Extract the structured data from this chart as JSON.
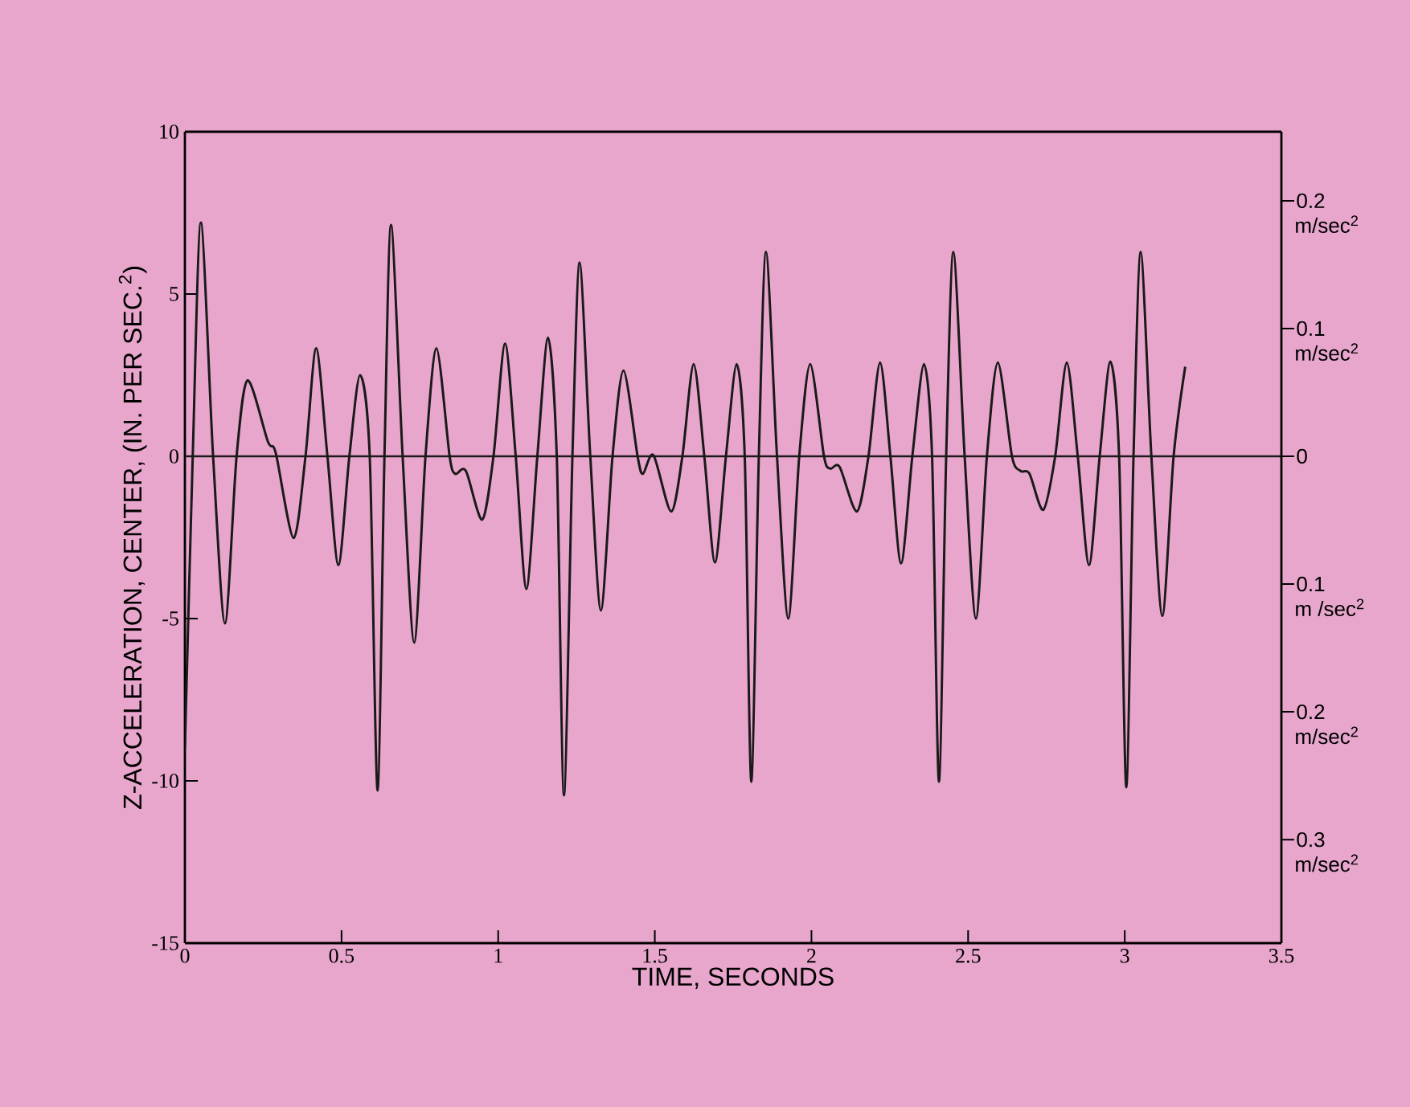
{
  "chart_data": {
    "type": "line",
    "xlabel": "TIME, SECONDS",
    "ylabel": "Z-ACCELERATION, CENTER, (IN. PER SEC.$^{2}$)",
    "xlim": [
      0,
      3.5
    ],
    "ylim": [
      -15,
      10
    ],
    "xticks": [
      0,
      0.5,
      1,
      1.5,
      2,
      2.5,
      3,
      3.5
    ],
    "yticks": [
      -15,
      -10,
      -5,
      0,
      5,
      10
    ],
    "y2lim": [
      -0.381,
      0.254
    ],
    "y2ticks": [
      {
        "value": -0.3,
        "label": "0.3"
      },
      {
        "value": -0.2,
        "label": "0.2"
      },
      {
        "value": -0.1,
        "label": "0.1"
      },
      0,
      0.1,
      0.2
    ],
    "annotations": [
      "m/sec$^{2}$",
      "m/sec$^{2}$",
      "m /sec$^{2}$",
      "m/sec$^{2}$",
      "m/sec$^{2}$"
    ],
    "color": "#1a1a1a",
    "marker": "none",
    "line_style": "solid",
    "grid": false,
    "ref_lines": [
      {
        "axis": "y",
        "value": 0,
        "color": "#1a1a1a"
      }
    ],
    "x": [
      0,
      0.025,
      0.051,
      0.09,
      0.128,
      0.165,
      0.2,
      0.265,
      0.29,
      0.347,
      0.385,
      0.419,
      0.455,
      0.49,
      0.525,
      0.559,
      0.59,
      0.615,
      0.637,
      0.658,
      0.695,
      0.732,
      0.768,
      0.803,
      0.845,
      0.863,
      0.897,
      0.949,
      0.985,
      1.022,
      1.056,
      1.09,
      1.125,
      1.159,
      1.187,
      1.21,
      1.237,
      1.26,
      1.294,
      1.328,
      1.365,
      1.4,
      1.445,
      1.462,
      1.496,
      1.552,
      1.588,
      1.624,
      1.658,
      1.692,
      1.727,
      1.761,
      1.787,
      1.808,
      1.832,
      1.855,
      1.89,
      1.926,
      1.961,
      1.996,
      2.04,
      2.06,
      2.09,
      2.145,
      2.182,
      2.219,
      2.252,
      2.286,
      2.322,
      2.359,
      2.385,
      2.407,
      2.43,
      2.453,
      2.489,
      2.525,
      2.56,
      2.595,
      2.64,
      2.667,
      2.696,
      2.74,
      2.778,
      2.815,
      2.85,
      2.886,
      2.92,
      2.954,
      2.982,
      3.005,
      3.028,
      3.051,
      3.085,
      3.12,
      3.156,
      3.193
    ],
    "values": [
      -9,
      0,
      7.2,
      0,
      -5.15,
      0,
      2.34,
      0.45,
      0.1,
      -2.52,
      0,
      3.33,
      0,
      -3.35,
      0,
      2.5,
      0,
      -10.3,
      0,
      7.13,
      0,
      -5.74,
      0,
      3.33,
      0,
      -0.54,
      -0.45,
      -1.95,
      0,
      3.47,
      0,
      -4.09,
      0,
      3.66,
      0,
      -10.45,
      0,
      5.97,
      0,
      -4.75,
      0,
      2.64,
      0,
      -0.54,
      0.03,
      -1.7,
      0,
      2.84,
      0,
      -3.27,
      0,
      2.84,
      0,
      -10.03,
      0,
      6.3,
      0,
      -5.0,
      0,
      2.84,
      0,
      -0.38,
      -0.33,
      -1.7,
      0,
      2.89,
      0,
      -3.3,
      0,
      2.84,
      0,
      -10.03,
      0,
      6.3,
      0,
      -5.0,
      0,
      2.89,
      0,
      -0.45,
      -0.54,
      -1.65,
      0,
      2.89,
      0,
      -3.35,
      0,
      2.92,
      0,
      -10.2,
      0,
      6.3,
      0,
      -4.92,
      0,
      2.76
    ]
  }
}
